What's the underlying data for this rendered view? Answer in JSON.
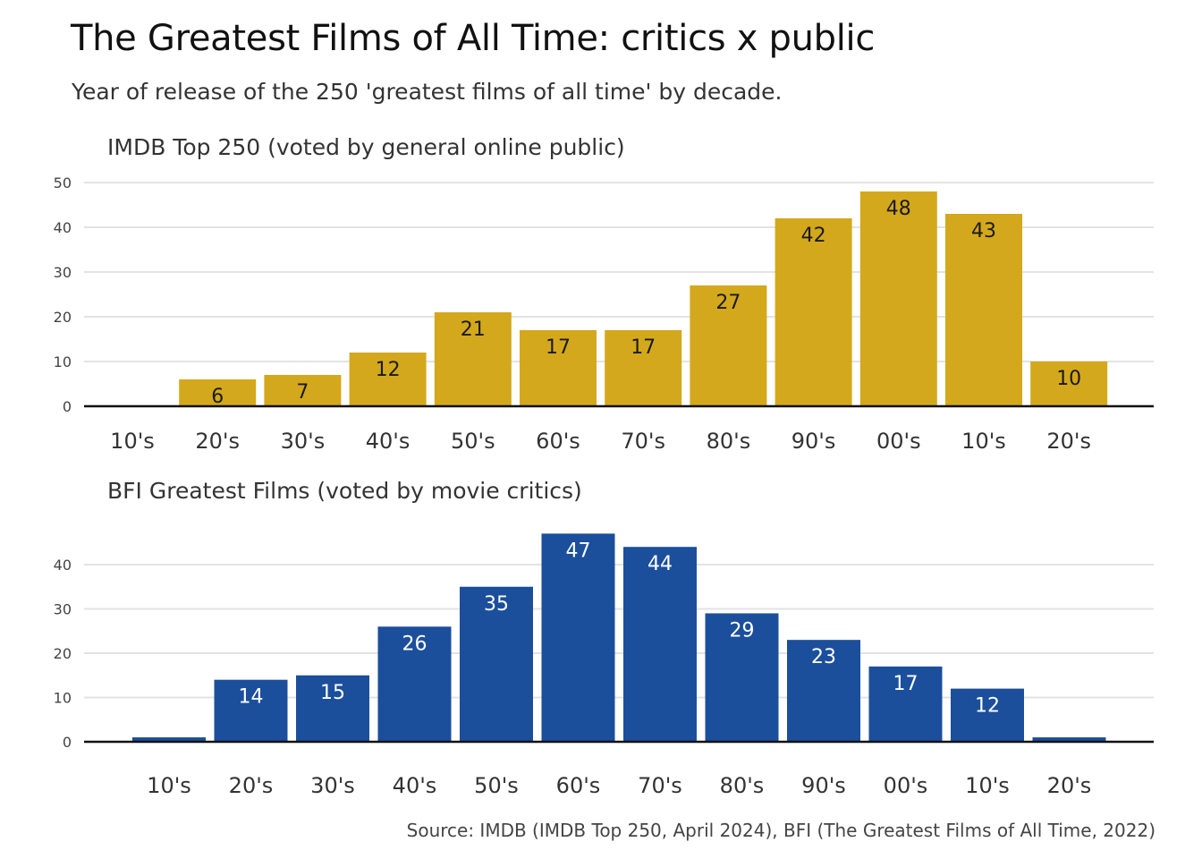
{
  "title": "The Greatest Films of All Time: critics x public",
  "subtitle": "Year of release of the 250 'greatest films of all time' by decade.",
  "source": "Source: IMDB (IMDB Top 250, April 2024), BFI (The Greatest Films of All Time, 2022)",
  "colors": {
    "imdb_bar": "#d4a81c",
    "imdb_label": "#1a1a1a",
    "bfi_bar": "#1b4f9c",
    "bfi_label": "#ffffff"
  },
  "chart_data": [
    {
      "type": "bar",
      "title": "IMDB Top 250 (voted by general online public)",
      "xlabel": "",
      "ylabel": "",
      "categories": [
        "10's",
        "20's",
        "30's",
        "40's",
        "50's",
        "60's",
        "70's",
        "80's",
        "90's",
        "00's",
        "10's",
        "20's"
      ],
      "values": [
        0,
        6,
        7,
        12,
        21,
        17,
        17,
        27,
        42,
        48,
        43,
        10
      ],
      "ylim": [
        0,
        50
      ],
      "yticks": [
        0,
        10,
        20,
        30,
        40,
        50
      ],
      "grid": true,
      "data_labels": true
    },
    {
      "type": "bar",
      "title": "BFI Greatest Films (voted by movie critics)",
      "xlabel": "",
      "ylabel": "",
      "categories": [
        "10's",
        "20's",
        "30's",
        "40's",
        "50's",
        "60's",
        "70's",
        "80's",
        "90's",
        "00's",
        "10's",
        "20's"
      ],
      "values": [
        1,
        14,
        15,
        26,
        35,
        47,
        44,
        29,
        23,
        17,
        12,
        1
      ],
      "ylim": [
        0,
        47
      ],
      "yticks": [
        0,
        10,
        20,
        30,
        40
      ],
      "grid": true,
      "data_labels": true
    }
  ]
}
